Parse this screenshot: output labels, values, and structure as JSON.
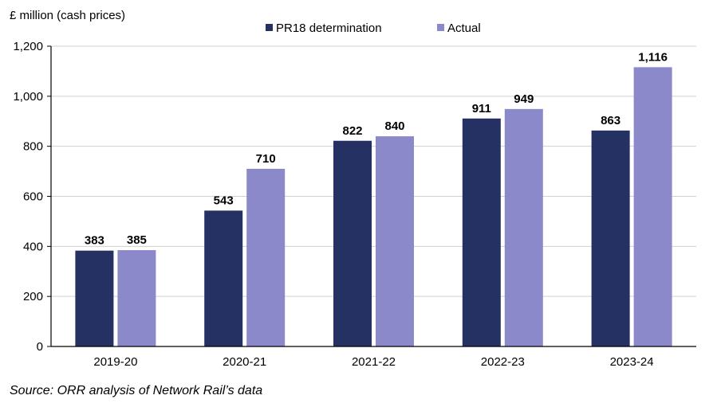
{
  "chart_data": {
    "type": "bar",
    "ylabel": "£ million (cash prices)",
    "categories": [
      "2019-20",
      "2020-21",
      "2021-22",
      "2022-23",
      "2023-24"
    ],
    "series": [
      {
        "name": "PR18 determination",
        "values": [
          383,
          543,
          822,
          911,
          863
        ],
        "color": "#253162"
      },
      {
        "name": "Actual",
        "values": [
          385,
          710,
          840,
          949,
          1116
        ],
        "color": "#8B89C9"
      }
    ],
    "data_labels": [
      [
        "383",
        "543",
        "822",
        "911",
        "863"
      ],
      [
        "385",
        "710",
        "840",
        "949",
        "1,116"
      ]
    ],
    "ylim": [
      0,
      1200
    ],
    "yticks": [
      0,
      200,
      400,
      600,
      800,
      1000,
      1200
    ],
    "ytick_labels": [
      "0",
      "200",
      "400",
      "600",
      "800",
      "1,000",
      "1,200"
    ],
    "grid": true,
    "legend": "top"
  },
  "source": "Source: ORR analysis of Network Rail’s data"
}
